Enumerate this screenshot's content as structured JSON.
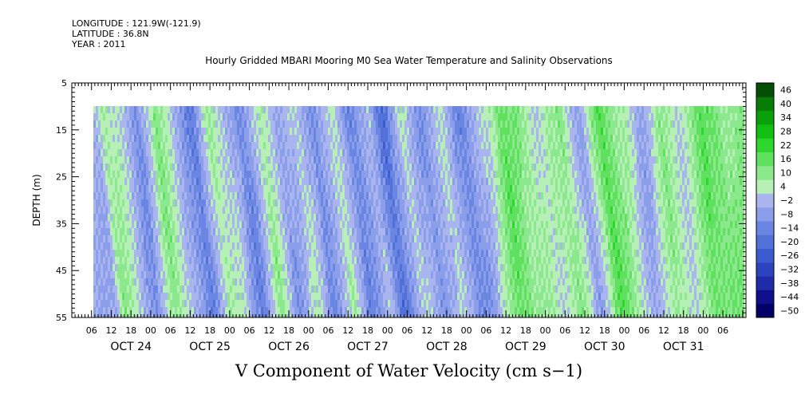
{
  "header": {
    "longitude": "LONGITUDE : 121.9W(-121.9)",
    "latitude": "LATITUDE : 36.8N",
    "year": "YEAR : 2011"
  },
  "chart_data": {
    "type": "heatmap",
    "title": "Hourly Gridded MBARI Mooring M0 Sea Water Temperature and Salinity Observations",
    "xlabel": "V Component of Water Velocity (cm s−1)",
    "ylabel": "DEPTH (m)",
    "ylim": [
      5,
      55
    ],
    "y_reversed": true,
    "yticks": [
      5,
      15,
      25,
      35,
      45,
      55
    ],
    "x_hours_range": [
      0,
      205
    ],
    "data_start_hour": 6.5,
    "hour_tick_labels": [
      "06",
      "12",
      "18",
      "00",
      "06",
      "12",
      "18",
      "00",
      "06",
      "12",
      "18",
      "00",
      "06",
      "12",
      "18",
      "00",
      "06",
      "12",
      "18",
      "00",
      "06",
      "12",
      "18",
      "00",
      "06",
      "12",
      "18",
      "00",
      "06",
      "12",
      "18",
      "00",
      "06"
    ],
    "date_labels": [
      {
        "label": "OCT 24",
        "hour": 18
      },
      {
        "label": "OCT 25",
        "hour": 42
      },
      {
        "label": "OCT 26",
        "hour": 66
      },
      {
        "label": "OCT 27",
        "hour": 90
      },
      {
        "label": "OCT 28",
        "hour": 114
      },
      {
        "label": "OCT 29",
        "hour": 138
      },
      {
        "label": "OCT 30",
        "hour": 162
      },
      {
        "label": "OCT 31",
        "hour": 186
      }
    ],
    "data_depth_range": [
      10,
      55
    ],
    "colorbar": {
      "levels": [
        -50,
        -44,
        -38,
        -32,
        -26,
        -20,
        -14,
        -8,
        -2,
        4,
        10,
        16,
        22,
        28,
        34,
        40,
        46
      ],
      "tick_labels": [
        "46",
        "40",
        "34",
        "28",
        "22",
        "16",
        "10",
        "4",
        "−2",
        "−8",
        "−14",
        "−20",
        "−26",
        "−32",
        "−38",
        "−44",
        "−50"
      ],
      "colors": [
        "#000066",
        "#10108c",
        "#1f2ba8",
        "#2c44c0",
        "#3b5cd0",
        "#5171d9",
        "#6b86e2",
        "#8a9ee9",
        "#aab4ee",
        "#b7f0b7",
        "#8ce88c",
        "#5fe05f",
        "#2ed62e",
        "#12c012",
        "#0aa00a",
        "#067d06",
        "#034f03"
      ]
    },
    "velocity_profile": [
      {
        "hour": 6.5,
        "v": -2
      },
      {
        "hour": 9,
        "v": 12
      },
      {
        "hour": 14,
        "v": 4
      },
      {
        "hour": 19,
        "v": -9
      },
      {
        "hour": 25,
        "v": 14
      },
      {
        "hour": 30,
        "v": 2
      },
      {
        "hour": 36,
        "v": -14
      },
      {
        "hour": 41,
        "v": 10
      },
      {
        "hour": 46,
        "v": 3
      },
      {
        "hour": 51,
        "v": -12
      },
      {
        "hour": 57,
        "v": 12
      },
      {
        "hour": 62,
        "v": -6
      },
      {
        "hour": 68,
        "v": 6
      },
      {
        "hour": 73,
        "v": -10
      },
      {
        "hour": 79,
        "v": 9
      },
      {
        "hour": 84,
        "v": -12
      },
      {
        "hour": 90,
        "v": 2
      },
      {
        "hour": 94,
        "v": -18
      },
      {
        "hour": 100,
        "v": 6
      },
      {
        "hour": 106,
        "v": -8
      },
      {
        "hour": 112,
        "v": 5
      },
      {
        "hour": 118,
        "v": -12
      },
      {
        "hour": 124,
        "v": 3
      },
      {
        "hour": 130,
        "v": 18
      },
      {
        "hour": 136,
        "v": 12
      },
      {
        "hour": 142,
        "v": 4
      },
      {
        "hour": 148,
        "v": 14
      },
      {
        "hour": 154,
        "v": -6
      },
      {
        "hour": 160,
        "v": 22
      },
      {
        "hour": 166,
        "v": 9
      },
      {
        "hour": 172,
        "v": -3
      },
      {
        "hour": 178,
        "v": 12
      },
      {
        "hour": 184,
        "v": 4
      },
      {
        "hour": 190,
        "v": 18
      },
      {
        "hour": 195,
        "v": 16
      },
      {
        "hour": 200,
        "v": 12
      }
    ]
  }
}
